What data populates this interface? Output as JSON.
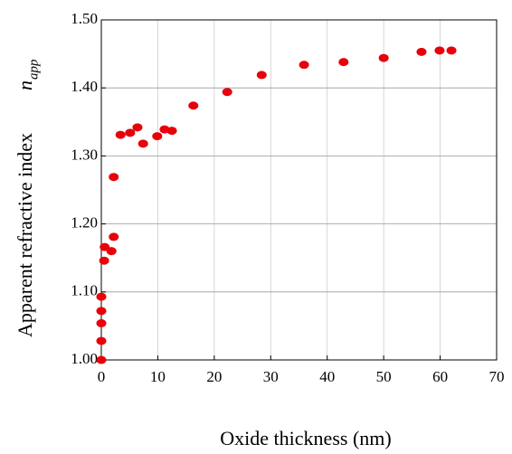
{
  "chart_data": {
    "type": "scatter",
    "xlabel": "Oxide thickness   (nm)",
    "ylabel": "Apparent refractive index",
    "ylabel_symbol": "n",
    "ylabel_subscript": "app",
    "color": "#e8000b",
    "grid": true,
    "xlim": [
      0,
      70
    ],
    "xticks": [
      0,
      10,
      20,
      30,
      40,
      50,
      60,
      70
    ],
    "ylim": [
      1.0,
      1.5
    ],
    "yticks": [
      {
        "value": 1.0,
        "label": "1.00"
      },
      {
        "value": 1.1,
        "label": "1.10"
      },
      {
        "value": 1.2,
        "label": "1.20"
      },
      {
        "value": 1.3,
        "label": "1.30"
      },
      {
        "value": 1.4,
        "label": "1.40"
      },
      {
        "value": 1.5,
        "label": "1.50"
      }
    ],
    "x": [
      0,
      0,
      0,
      0,
      0,
      0.5,
      0.6,
      1.8,
      2.2,
      2.2,
      3.4,
      5.1,
      6.4,
      7.4,
      9.9,
      11.2,
      12.5,
      16.3,
      22.3,
      28.4,
      35.9,
      42.9,
      50,
      56.7,
      59.9,
      62
    ],
    "values": [
      1.0,
      1.028,
      1.054,
      1.072,
      1.093,
      1.146,
      1.166,
      1.16,
      1.181,
      1.269,
      1.331,
      1.334,
      1.342,
      1.318,
      1.329,
      1.339,
      1.337,
      1.374,
      1.394,
      1.419,
      1.434,
      1.438,
      1.444,
      1.453,
      1.455,
      1.455
    ]
  }
}
